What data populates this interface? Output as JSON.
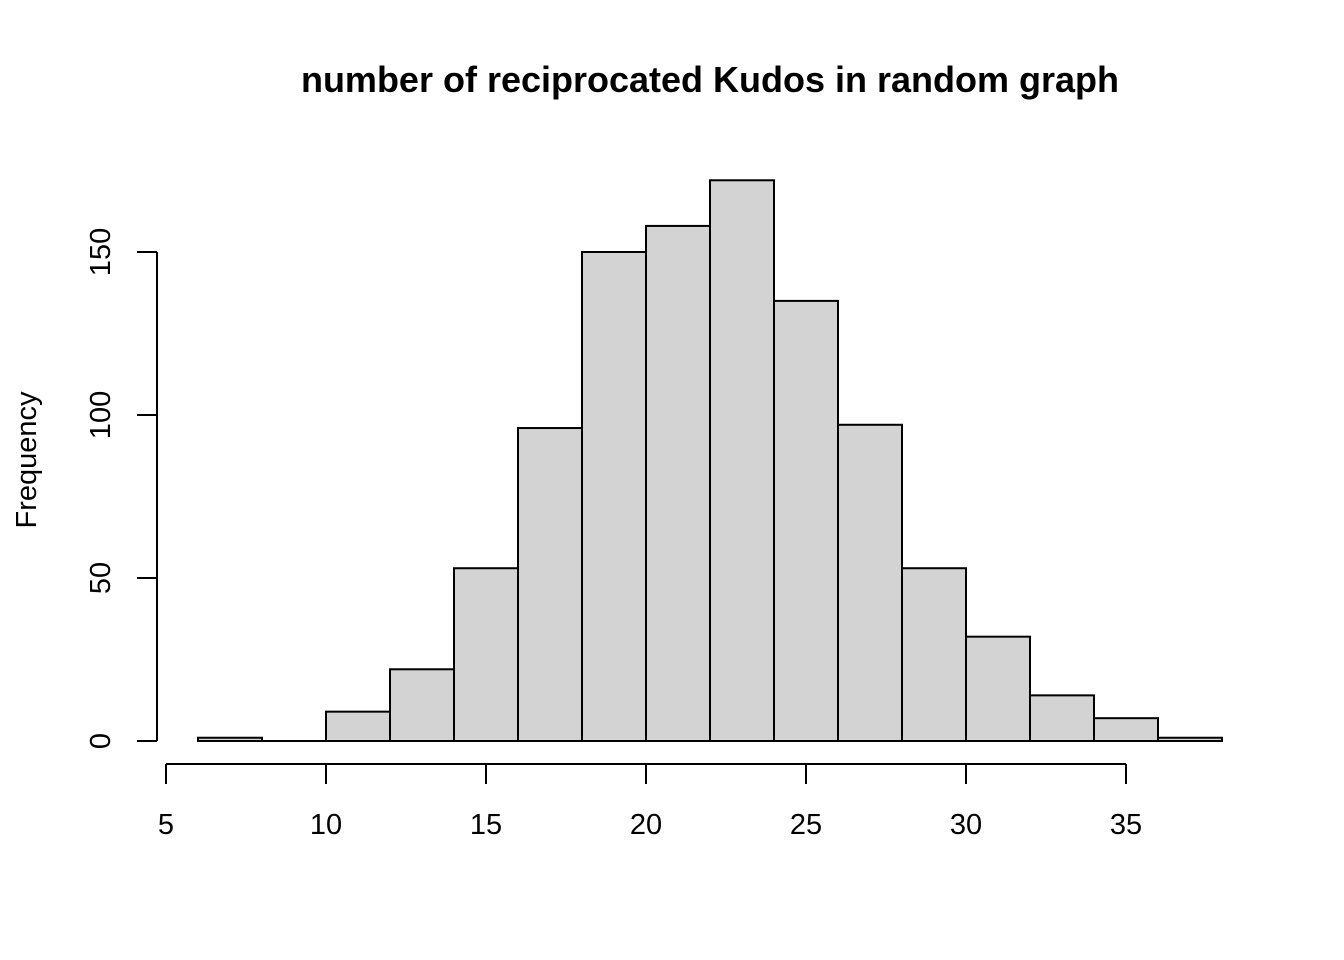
{
  "chart_data": {
    "type": "bar",
    "subtype": "histogram",
    "title": "number of reciprocated Kudos in random graph",
    "xlabel": "",
    "ylabel": "Frequency",
    "bin_width": 2,
    "bins": [
      {
        "start": 6,
        "end": 8,
        "value": 1
      },
      {
        "start": 8,
        "end": 10,
        "value": 0
      },
      {
        "start": 10,
        "end": 12,
        "value": 9
      },
      {
        "start": 12,
        "end": 14,
        "value": 22
      },
      {
        "start": 14,
        "end": 16,
        "value": 53
      },
      {
        "start": 16,
        "end": 18,
        "value": 96
      },
      {
        "start": 18,
        "end": 20,
        "value": 150
      },
      {
        "start": 20,
        "end": 22,
        "value": 158
      },
      {
        "start": 22,
        "end": 24,
        "value": 172
      },
      {
        "start": 24,
        "end": 26,
        "value": 135
      },
      {
        "start": 26,
        "end": 28,
        "value": 97
      },
      {
        "start": 28,
        "end": 30,
        "value": 53
      },
      {
        "start": 30,
        "end": 32,
        "value": 32
      },
      {
        "start": 32,
        "end": 34,
        "value": 14
      },
      {
        "start": 34,
        "end": 36,
        "value": 7
      },
      {
        "start": 36,
        "end": 38,
        "value": 1
      }
    ],
    "x_ticks": [
      "5",
      "10",
      "15",
      "20",
      "25",
      "30",
      "35"
    ],
    "y_ticks": [
      "0",
      "50",
      "100",
      "150"
    ],
    "xlim": [
      6,
      38
    ],
    "ylim": [
      0,
      172
    ],
    "grid": false,
    "legend": "none",
    "bar_fill": "#d3d3d3",
    "bar_stroke": "#000000"
  }
}
